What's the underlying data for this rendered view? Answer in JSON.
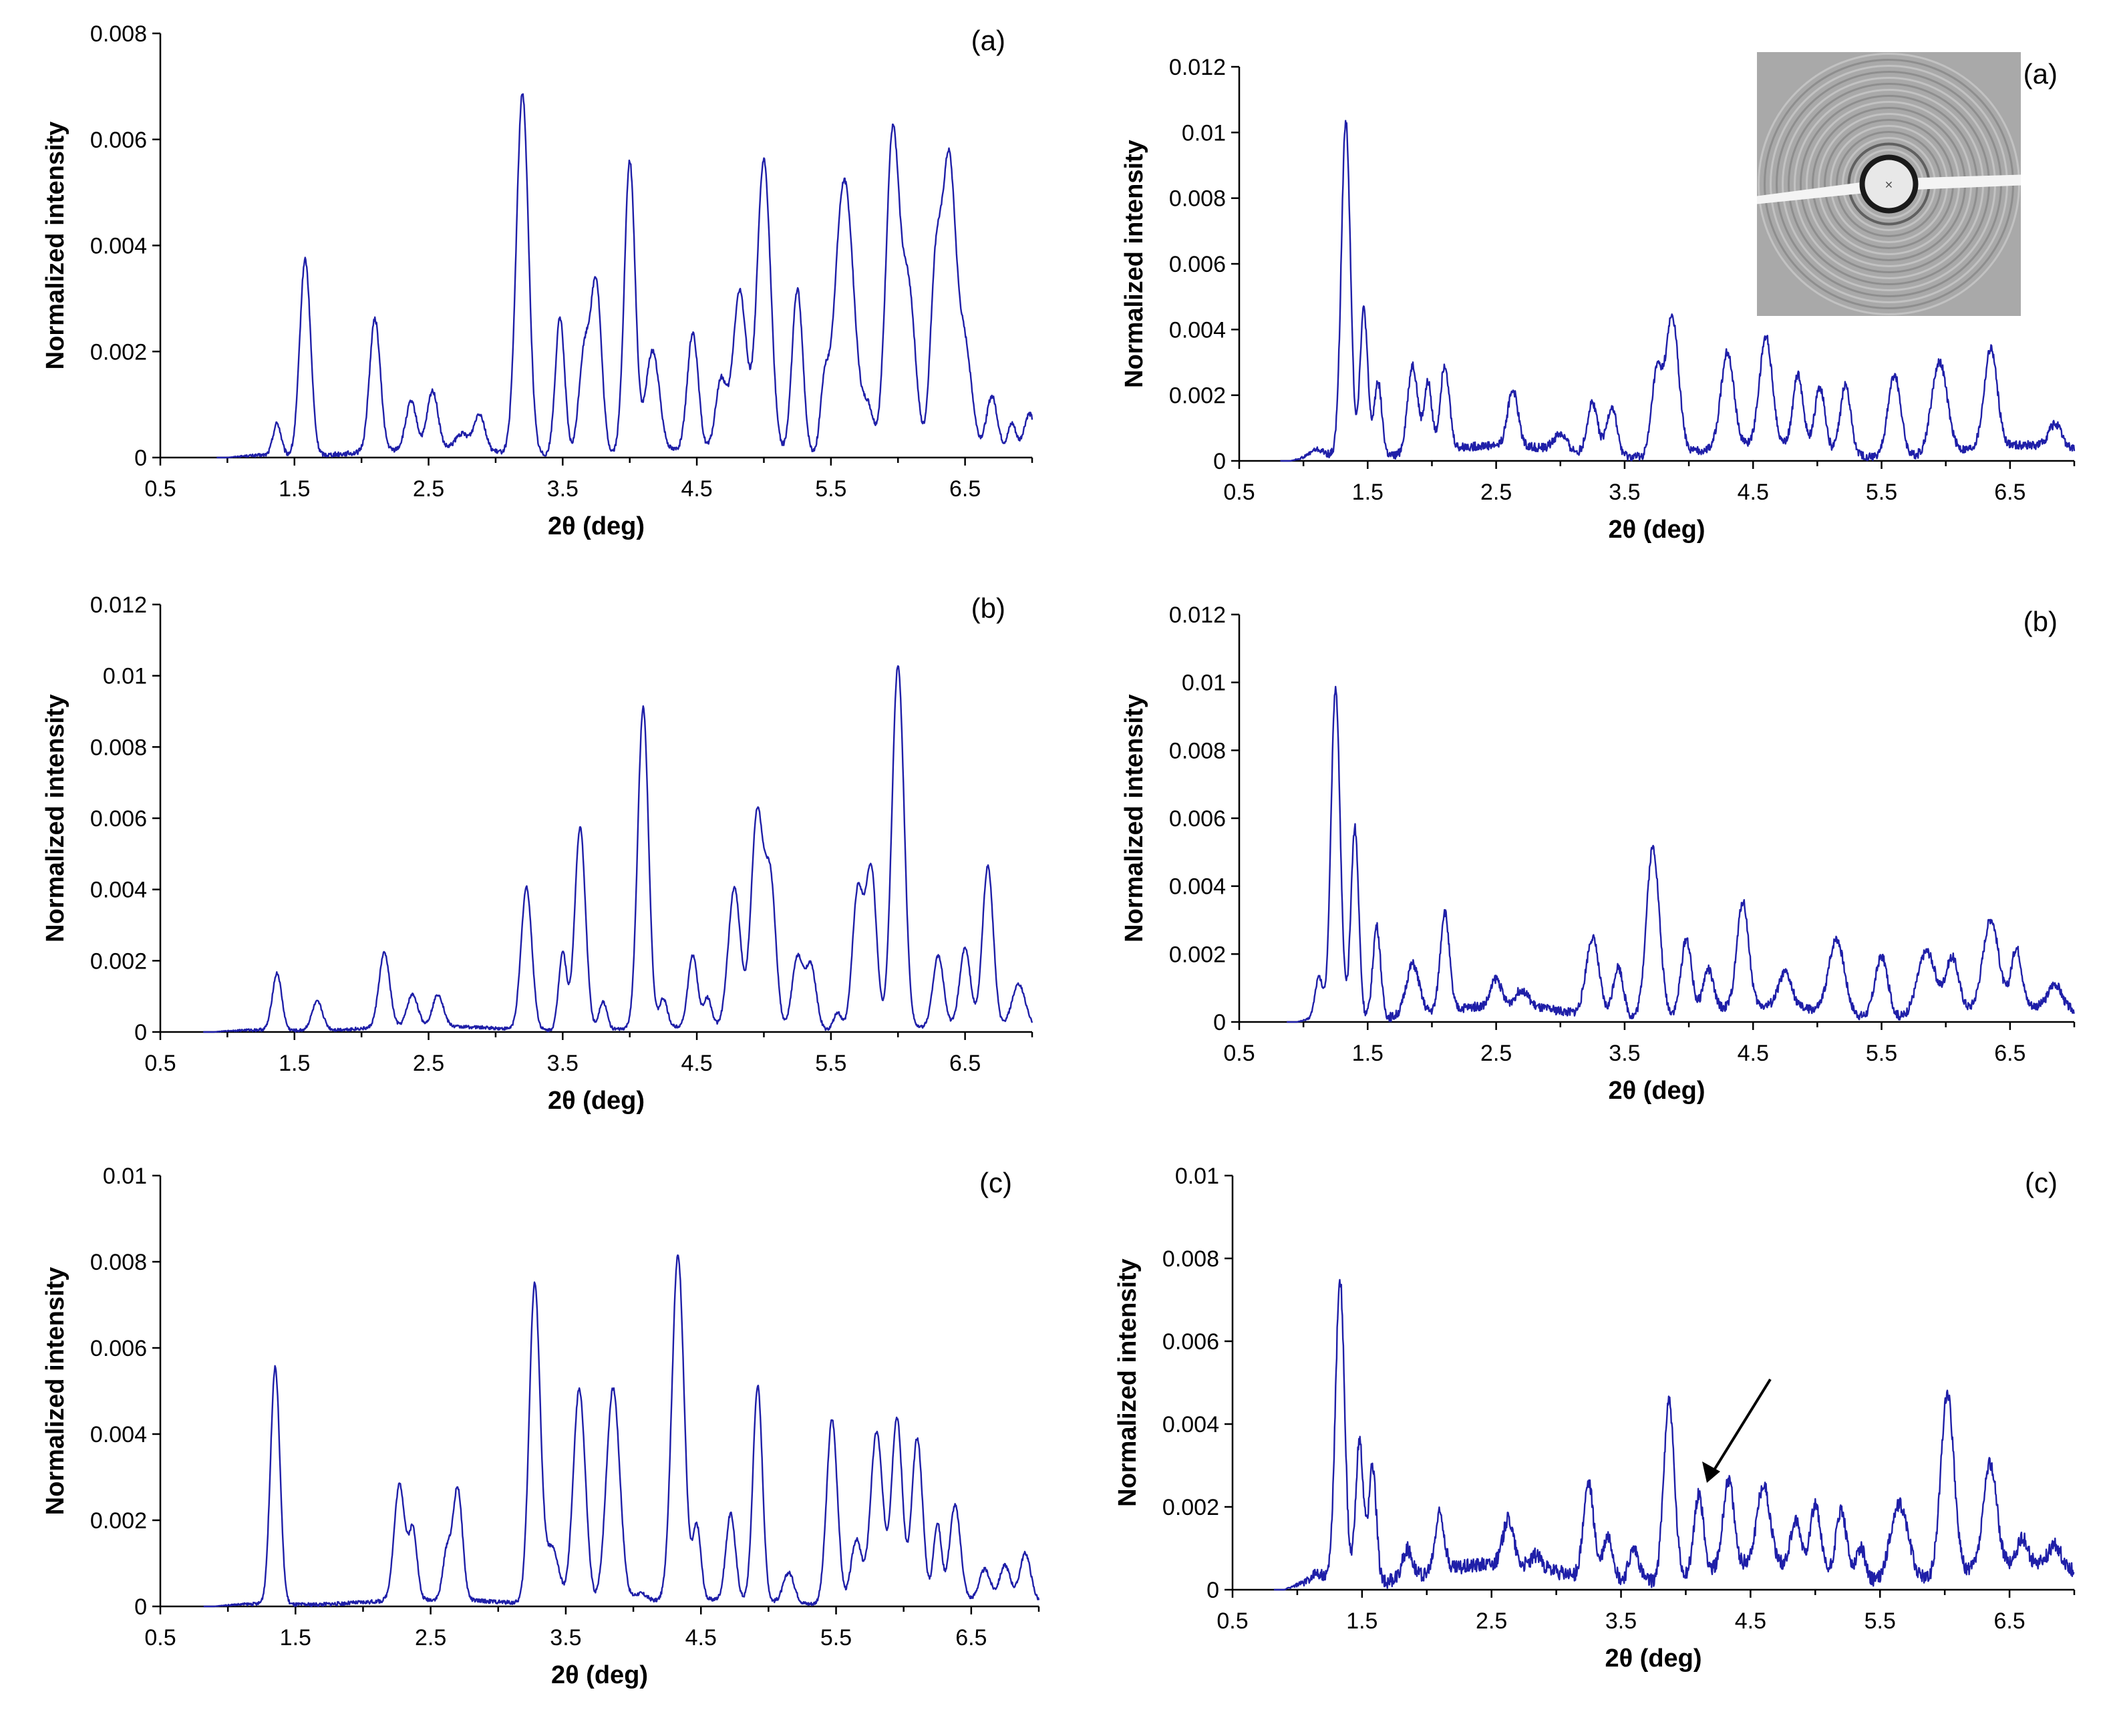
{
  "figure": {
    "colors": {
      "series": "#1f1fa8",
      "axis": "#000000",
      "background": "#ffffff"
    }
  },
  "chart_data": [
    {
      "id": "left-a",
      "type": "line",
      "panel_label": "(a)",
      "xlabel": "2θ (deg)",
      "ylabel": "Normalized intensity",
      "xlim": [
        0.5,
        7.0
      ],
      "ylim": [
        0,
        0.008
      ],
      "xticks": [
        "0.5",
        "1.5",
        "2.5",
        "3.5",
        "4.5",
        "5.5",
        "6.5"
      ],
      "yticks": [
        "0",
        "0.002",
        "0.004",
        "0.006",
        "0.008"
      ],
      "series": [
        {
          "name": "diffraction profile",
          "baseline": 0.0001,
          "start": 1.0,
          "peaks": [
            [
              1.37,
              0.0006,
              0.03
            ],
            [
              1.58,
              0.0037,
              0.04
            ],
            [
              2.1,
              0.0025,
              0.04
            ],
            [
              2.37,
              0.0009,
              0.04
            ],
            [
              2.53,
              0.0011,
              0.04
            ],
            [
              2.75,
              0.0003,
              0.05
            ],
            [
              2.88,
              0.0007,
              0.04
            ],
            [
              3.2,
              0.0068,
              0.045
            ],
            [
              3.48,
              0.0026,
              0.035
            ],
            [
              3.66,
              0.0019,
              0.04
            ],
            [
              3.75,
              0.0032,
              0.04
            ],
            [
              4.0,
              0.0055,
              0.04
            ],
            [
              4.17,
              0.0019,
              0.05
            ],
            [
              4.47,
              0.0022,
              0.04
            ],
            [
              4.68,
              0.0013,
              0.04
            ],
            [
              4.82,
              0.003,
              0.05
            ],
            [
              5.0,
              0.0055,
              0.05
            ],
            [
              5.25,
              0.0031,
              0.04
            ],
            [
              5.45,
              0.0011,
              0.03
            ],
            [
              5.6,
              0.0052,
              0.07
            ],
            [
              5.78,
              0.0008,
              0.04
            ],
            [
              5.96,
              0.006,
              0.05
            ],
            [
              6.08,
              0.003,
              0.05
            ],
            [
              6.28,
              0.0032,
              0.04
            ],
            [
              6.38,
              0.0054,
              0.05
            ],
            [
              6.5,
              0.0019,
              0.05
            ],
            [
              6.7,
              0.001,
              0.04
            ],
            [
              6.85,
              0.0005,
              0.03
            ],
            [
              6.98,
              0.0007,
              0.04
            ]
          ]
        }
      ]
    },
    {
      "id": "right-a",
      "type": "line",
      "panel_label": "(a)",
      "xlabel": "2θ (deg)",
      "ylabel": "Normalized intensity",
      "xlim": [
        0.5,
        7.0
      ],
      "ylim": [
        0,
        0.012
      ],
      "xticks": [
        "0.5",
        "1.5",
        "2.5",
        "3.5",
        "4.5",
        "5.5",
        "6.5"
      ],
      "yticks": [
        "0",
        "0.002",
        "0.004",
        "0.006",
        "0.008",
        "0.01",
        "0.012"
      ],
      "inset": "2D diffraction ring pattern",
      "series": [
        {
          "name": "diffraction profile",
          "baseline": 0.0003,
          "start": 0.9,
          "peaks": [
            [
              1.1,
              0.0002,
              0.05
            ],
            [
              1.33,
              0.0102,
              0.035
            ],
            [
              1.47,
              0.0045,
              0.03
            ],
            [
              1.58,
              0.0023,
              0.03
            ],
            [
              1.85,
              0.0027,
              0.04
            ],
            [
              1.97,
              0.0021,
              0.03
            ],
            [
              2.1,
              0.0026,
              0.035
            ],
            [
              2.63,
              0.0017,
              0.04
            ],
            [
              3.0,
              0.0005,
              0.05
            ],
            [
              3.25,
              0.0016,
              0.04
            ],
            [
              3.4,
              0.0015,
              0.04
            ],
            [
              3.75,
              0.0025,
              0.04
            ],
            [
              3.87,
              0.0042,
              0.05
            ],
            [
              4.3,
              0.0029,
              0.05
            ],
            [
              4.6,
              0.0033,
              0.05
            ],
            [
              4.85,
              0.0022,
              0.04
            ],
            [
              5.02,
              0.0019,
              0.04
            ],
            [
              5.22,
              0.0021,
              0.04
            ],
            [
              5.6,
              0.0025,
              0.05
            ],
            [
              5.95,
              0.0028,
              0.06
            ],
            [
              6.35,
              0.003,
              0.05
            ],
            [
              6.85,
              0.0007,
              0.05
            ]
          ]
        }
      ]
    },
    {
      "id": "left-b",
      "type": "line",
      "panel_label": "(b)",
      "xlabel": "2θ (deg)",
      "ylabel": "Normalized intensity",
      "xlim": [
        0.5,
        7.0
      ],
      "ylim": [
        0,
        0.012
      ],
      "xticks": [
        "0.5",
        "1.5",
        "2.5",
        "3.5",
        "4.5",
        "5.5",
        "6.5"
      ],
      "yticks": [
        "0",
        "0.002",
        "0.004",
        "0.006",
        "0.008",
        "0.01",
        "0.012"
      ],
      "series": [
        {
          "name": "diffraction profile",
          "baseline": 0.0001,
          "start": 0.9,
          "peaks": [
            [
              1.37,
              0.0016,
              0.035
            ],
            [
              1.67,
              0.0008,
              0.04
            ],
            [
              2.17,
              0.0021,
              0.04
            ],
            [
              2.38,
              0.0009,
              0.04
            ],
            [
              2.57,
              0.0009,
              0.04
            ],
            [
              3.23,
              0.004,
              0.04
            ],
            [
              3.5,
              0.0022,
              0.03
            ],
            [
              3.63,
              0.0057,
              0.04
            ],
            [
              3.8,
              0.0008,
              0.03
            ],
            [
              4.1,
              0.009,
              0.04
            ],
            [
              4.25,
              0.0008,
              0.03
            ],
            [
              4.47,
              0.002,
              0.035
            ],
            [
              4.58,
              0.0008,
              0.03
            ],
            [
              4.78,
              0.0039,
              0.045
            ],
            [
              4.95,
              0.006,
              0.045
            ],
            [
              5.05,
              0.004,
              0.04
            ],
            [
              5.25,
              0.002,
              0.04
            ],
            [
              5.35,
              0.0018,
              0.04
            ],
            [
              5.55,
              0.0005,
              0.03
            ],
            [
              5.7,
              0.0039,
              0.04
            ],
            [
              5.8,
              0.0045,
              0.04
            ],
            [
              6.0,
              0.0102,
              0.045
            ],
            [
              6.3,
              0.002,
              0.04
            ],
            [
              6.5,
              0.0022,
              0.04
            ],
            [
              6.67,
              0.0045,
              0.04
            ],
            [
              6.9,
              0.0012,
              0.05
            ]
          ]
        }
      ]
    },
    {
      "id": "right-b",
      "type": "line",
      "panel_label": "(b)",
      "xlabel": "2θ (deg)",
      "ylabel": "Normalized intensity",
      "xlim": [
        0.5,
        7.0
      ],
      "ylim": [
        0,
        0.012
      ],
      "xticks": [
        "0.5",
        "1.5",
        "2.5",
        "3.5",
        "4.5",
        "5.5",
        "6.5"
      ],
      "yticks": [
        "0",
        "0.002",
        "0.004",
        "0.006",
        "0.008",
        "0.01",
        "0.012"
      ],
      "series": [
        {
          "name": "diffraction profile",
          "baseline": 0.0003,
          "start": 0.95,
          "peaks": [
            [
              1.12,
              0.0012,
              0.03
            ],
            [
              1.25,
              0.0097,
              0.035
            ],
            [
              1.4,
              0.0056,
              0.03
            ],
            [
              1.57,
              0.0027,
              0.03
            ],
            [
              1.85,
              0.0015,
              0.05
            ],
            [
              2.1,
              0.0029,
              0.035
            ],
            [
              2.5,
              0.0008,
              0.04
            ],
            [
              2.7,
              0.0005,
              0.05
            ],
            [
              3.25,
              0.0023,
              0.05
            ],
            [
              3.45,
              0.0015,
              0.04
            ],
            [
              3.72,
              0.005,
              0.05
            ],
            [
              3.98,
              0.0022,
              0.04
            ],
            [
              4.15,
              0.0012,
              0.04
            ],
            [
              4.42,
              0.0031,
              0.045
            ],
            [
              4.75,
              0.001,
              0.05
            ],
            [
              5.15,
              0.0022,
              0.06
            ],
            [
              5.5,
              0.0018,
              0.05
            ],
            [
              5.85,
              0.0019,
              0.07
            ],
            [
              6.05,
              0.0016,
              0.05
            ],
            [
              6.35,
              0.0026,
              0.06
            ],
            [
              6.55,
              0.0017,
              0.04
            ],
            [
              6.85,
              0.0007,
              0.05
            ]
          ]
        }
      ]
    },
    {
      "id": "left-c",
      "type": "line",
      "panel_label": "(c)",
      "xlabel": "2θ (deg)",
      "ylabel": "Normalized intensity",
      "xlim": [
        0.5,
        7.0
      ],
      "ylim": [
        0,
        0.01
      ],
      "xticks": [
        "0.5",
        "1.5",
        "2.5",
        "3.5",
        "4.5",
        "5.5",
        "6.5"
      ],
      "yticks": [
        "0",
        "0.002",
        "0.004",
        "0.006",
        "0.008",
        "0.01"
      ],
      "series": [
        {
          "name": "diffraction profile",
          "baseline": 0.0001,
          "start": 0.9,
          "peaks": [
            [
              1.35,
              0.0055,
              0.035
            ],
            [
              2.27,
              0.0027,
              0.04
            ],
            [
              2.37,
              0.0016,
              0.03
            ],
            [
              2.62,
              0.0011,
              0.03
            ],
            [
              2.7,
              0.0026,
              0.035
            ],
            [
              3.27,
              0.0074,
              0.04
            ],
            [
              3.4,
              0.0013,
              0.05
            ],
            [
              3.6,
              0.005,
              0.045
            ],
            [
              3.85,
              0.005,
              0.05
            ],
            [
              4.05,
              0.0002,
              0.05
            ],
            [
              4.33,
              0.008,
              0.045
            ],
            [
              4.47,
              0.0017,
              0.03
            ],
            [
              4.72,
              0.002,
              0.035
            ],
            [
              4.92,
              0.005,
              0.035
            ],
            [
              5.15,
              0.0007,
              0.04
            ],
            [
              5.47,
              0.0043,
              0.04
            ],
            [
              5.65,
              0.0015,
              0.04
            ],
            [
              5.8,
              0.004,
              0.045
            ],
            [
              5.95,
              0.0043,
              0.04
            ],
            [
              6.1,
              0.0038,
              0.04
            ],
            [
              6.25,
              0.0018,
              0.03
            ],
            [
              6.38,
              0.0022,
              0.04
            ],
            [
              6.6,
              0.0007,
              0.04
            ],
            [
              6.75,
              0.0008,
              0.04
            ],
            [
              6.9,
              0.0011,
              0.04
            ]
          ]
        }
      ]
    },
    {
      "id": "right-c",
      "type": "line",
      "panel_label": "(c)",
      "xlabel": "2θ (deg)",
      "ylabel": "Normalized intensity",
      "xlim": [
        0.5,
        7.0
      ],
      "ylim": [
        0,
        0.01
      ],
      "xticks": [
        "0.5",
        "1.5",
        "2.5",
        "3.5",
        "4.5",
        "5.5",
        "6.5"
      ],
      "yticks": [
        "0",
        "0.002",
        "0.004",
        "0.006",
        "0.008",
        "0.01"
      ],
      "annotation": "arrow pointing to peak near 4.1 deg",
      "series": [
        {
          "name": "diffraction profile",
          "baseline": 0.0004,
          "start": 0.9,
          "peaks": [
            [
              1.15,
              0.0002,
              0.04
            ],
            [
              1.33,
              0.0073,
              0.035
            ],
            [
              1.48,
              0.0034,
              0.03
            ],
            [
              1.58,
              0.0028,
              0.03
            ],
            [
              1.85,
              0.0007,
              0.04
            ],
            [
              2.1,
              0.0014,
              0.035
            ],
            [
              2.63,
              0.0011,
              0.04
            ],
            [
              2.85,
              0.0003,
              0.04
            ],
            [
              3.25,
              0.0023,
              0.04
            ],
            [
              3.4,
              0.0011,
              0.04
            ],
            [
              3.6,
              0.0008,
              0.04
            ],
            [
              3.87,
              0.0043,
              0.04
            ],
            [
              4.1,
              0.0019,
              0.035
            ],
            [
              4.33,
              0.0021,
              0.04
            ],
            [
              4.6,
              0.0019,
              0.05
            ],
            [
              4.85,
              0.0011,
              0.04
            ],
            [
              5.0,
              0.0016,
              0.04
            ],
            [
              5.2,
              0.0016,
              0.04
            ],
            [
              5.35,
              0.0008,
              0.04
            ],
            [
              5.65,
              0.0019,
              0.07
            ],
            [
              6.02,
              0.0044,
              0.05
            ],
            [
              6.35,
              0.0025,
              0.05
            ],
            [
              6.6,
              0.0006,
              0.04
            ],
            [
              6.85,
              0.0005,
              0.05
            ]
          ]
        }
      ]
    }
  ]
}
